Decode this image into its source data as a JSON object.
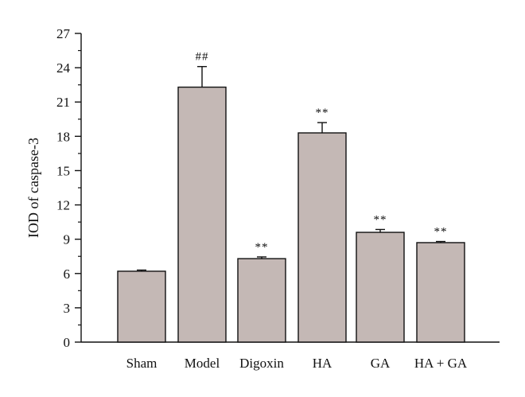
{
  "chart_data": {
    "type": "bar",
    "title": "",
    "xlabel": "",
    "ylabel": "IOD of caspase-3",
    "ylim": [
      0,
      27
    ],
    "yticks": [
      0,
      3,
      6,
      9,
      12,
      15,
      18,
      21,
      24,
      27
    ],
    "categories": [
      "Sham",
      "Model",
      "Digoxin",
      "HA",
      "GA",
      "HA + GA"
    ],
    "values": [
      6.2,
      22.3,
      7.3,
      18.3,
      9.6,
      8.7
    ],
    "errors": [
      0.1,
      1.8,
      0.15,
      0.9,
      0.25,
      0.1
    ],
    "annotations": [
      "",
      "##",
      "**",
      "**",
      "**",
      "**"
    ],
    "bar_color": "#c4b8b5",
    "grid": false,
    "legend": "none"
  }
}
